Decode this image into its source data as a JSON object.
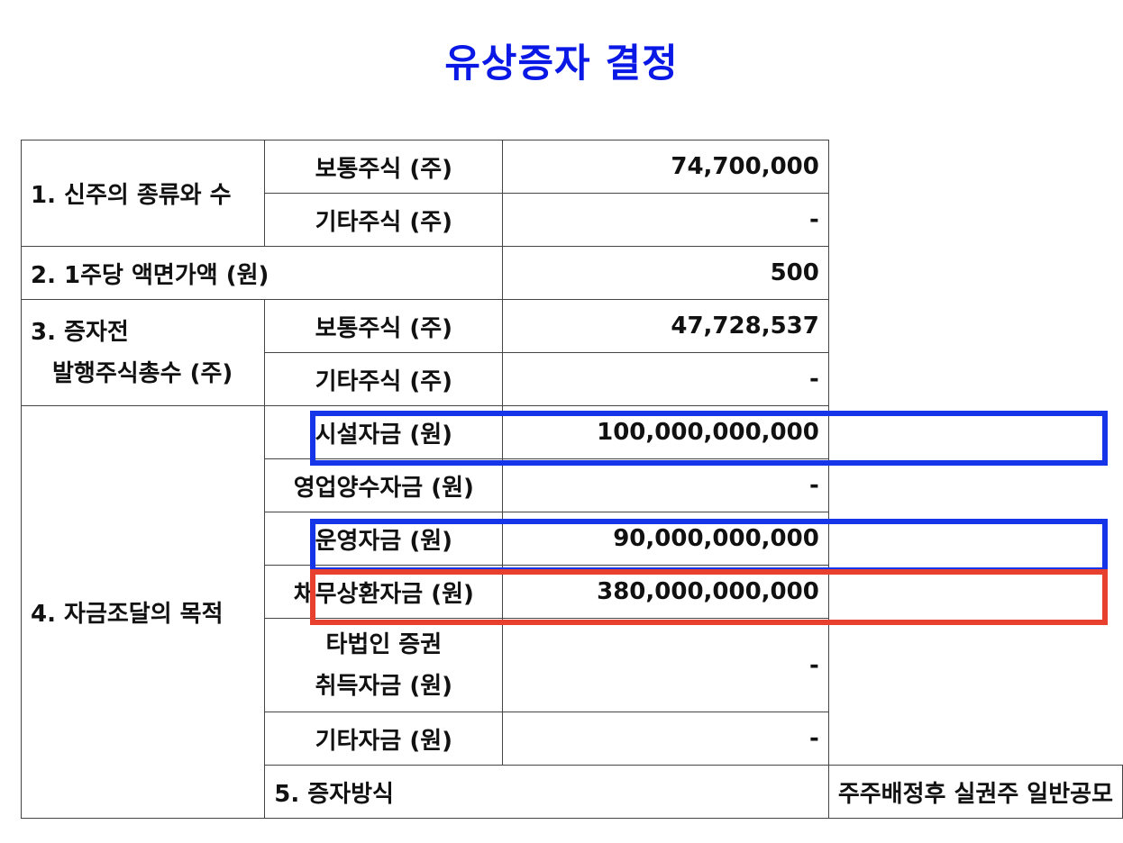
{
  "title": "유상증자 결정",
  "rows": {
    "r1": {
      "header": "1. 신주의 종류와 수",
      "items": [
        {
          "label": "보통주식 (주)",
          "value": "74,700,000"
        },
        {
          "label": "기타주식 (주)",
          "value": "-"
        }
      ]
    },
    "r2": {
      "header": "2. 1주당 액면가액 (원)",
      "value": "500"
    },
    "r3": {
      "header_line1": "3. 증자전",
      "header_line2": "발행주식총수 (주)",
      "items": [
        {
          "label": "보통주식 (주)",
          "value": "47,728,537"
        },
        {
          "label": "기타주식 (주)",
          "value": "-"
        }
      ]
    },
    "r4": {
      "header": "4. 자금조달의 목적",
      "items": [
        {
          "label": "시설자금 (원)",
          "value": "100,000,000,000"
        },
        {
          "label": "영업양수자금 (원)",
          "value": "-"
        },
        {
          "label": "운영자금 (원)",
          "value": "90,000,000,000"
        },
        {
          "label": "채무상환자금 (원)",
          "value": "380,000,000,000"
        },
        {
          "label_line1": "타법인 증권",
          "label_line2": "취득자금 (원)",
          "value": "-"
        },
        {
          "label": "기타자금 (원)",
          "value": "-"
        }
      ]
    },
    "r5": {
      "header": "5. 증자방식",
      "value": "주주배정후 실권주 일반공모"
    }
  },
  "highlights": {
    "blue": "#1634e8",
    "red": "#e8402e",
    "title_color": "#0a18e6"
  }
}
